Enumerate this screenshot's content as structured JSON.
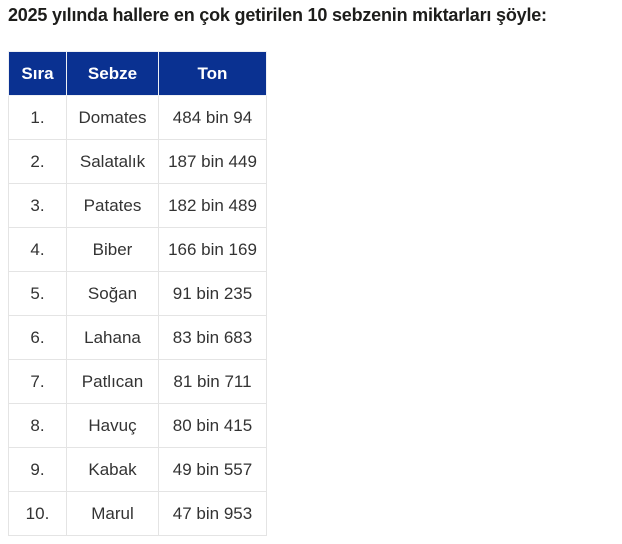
{
  "page": {
    "title": "2025 yılında hallere en çok getirilen 10 sebzenin miktarları şöyle:"
  },
  "colors": {
    "header_background": "#0a3191",
    "header_text": "#ffffff",
    "body_text": "#333333",
    "grid_border": "#e4e4e4",
    "title_text": "#1d1d1b"
  },
  "table": {
    "headers": [
      "Sıra",
      "Sebze",
      "Ton"
    ],
    "rows": [
      [
        "1.",
        "Domates",
        "484 bin 94"
      ],
      [
        "2.",
        "Salatalık",
        "187 bin 449"
      ],
      [
        "3.",
        "Patates",
        "182 bin 489"
      ],
      [
        "4.",
        "Biber",
        "166 bin 169"
      ],
      [
        "5.",
        "Soğan",
        "91 bin 235"
      ],
      [
        "6.",
        "Lahana",
        "83 bin 683"
      ],
      [
        "7.",
        "Patlıcan",
        "81 bin 711"
      ],
      [
        "8.",
        "Havuç",
        "80 bin 415"
      ],
      [
        "9.",
        "Kabak",
        "49 bin 557"
      ],
      [
        "10.",
        "Marul",
        "47 bin 953"
      ]
    ]
  },
  "chart_data": {
    "type": "table",
    "title": "2025 yılında hallere en çok getirilen 10 sebzenin miktarları",
    "columns": [
      "Sıra",
      "Sebze",
      "Ton"
    ],
    "categories": [
      "Domates",
      "Salatalık",
      "Patates",
      "Biber",
      "Soğan",
      "Lahana",
      "Patlıcan",
      "Havuç",
      "Kabak",
      "Marul"
    ],
    "values_tons": [
      484094,
      187449,
      182489,
      166169,
      91235,
      83683,
      81711,
      80415,
      49557,
      47953
    ],
    "value_labels": [
      "484 bin 94",
      "187 bin 449",
      "182 bin 489",
      "166 bin 169",
      "91 bin 235",
      "83 bin 683",
      "81 bin 711",
      "80 bin 415",
      "49 bin 557",
      "47 bin 953"
    ]
  }
}
